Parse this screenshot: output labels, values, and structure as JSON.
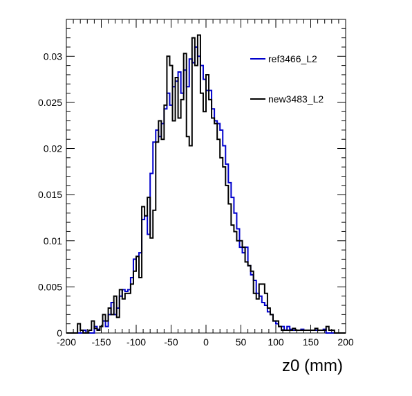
{
  "chart_data": {
    "type": "line",
    "style": "step-histogram",
    "title": "",
    "xlabel": "z0 (mm)",
    "ylabel": "",
    "xlim": [
      -200,
      200
    ],
    "ylim": [
      0,
      0.034
    ],
    "x_ticks": [
      -200,
      -150,
      -100,
      -50,
      0,
      50,
      100,
      150,
      200
    ],
    "x_tick_labels": [
      "-200",
      "-150",
      "-100",
      "-50",
      "0",
      "50",
      "100",
      "150",
      "200"
    ],
    "y_ticks": [
      0,
      0.005,
      0.01,
      0.015,
      0.02,
      0.025,
      0.03
    ],
    "y_tick_labels": [
      "0",
      "0.005",
      "0.01",
      "0.015",
      "0.02",
      "0.025",
      "0.03"
    ],
    "grid": false,
    "legend_position": "top-right",
    "bin_edges_start": -200,
    "bin_width": 4,
    "series": [
      {
        "name": "ref3466_L2",
        "color": "#0000cc",
        "values": [
          0,
          0,
          0,
          0,
          0,
          0,
          0.0003,
          0,
          0,
          0,
          0.0007,
          0.0004,
          0.0007,
          0.0013,
          0.0007,
          0.002,
          0.0033,
          0.002,
          0.0027,
          0.004,
          0.0047,
          0.0045,
          0.0047,
          0.006,
          0.008,
          0.0083,
          0.0087,
          0.0123,
          0.0127,
          0.0107,
          0.0173,
          0.0207,
          0.022,
          0.0213,
          0.0227,
          0.0243,
          0.026,
          0.0247,
          0.0267,
          0.0273,
          0.0283,
          0.026,
          0.0285,
          0.0267,
          0.0297,
          0.0293,
          0.031,
          0.03,
          0.029,
          0.0275,
          0.0263,
          0.0263,
          0.0243,
          0.023,
          0.0227,
          0.022,
          0.0203,
          0.0183,
          0.0163,
          0.0147,
          0.013,
          0.0113,
          0.0093,
          0.0087,
          0.0093,
          0.0073,
          0.0063,
          0.0057,
          0.0043,
          0.004,
          0.0033,
          0.003,
          0.0023,
          0.002,
          0.0013,
          0.001,
          0.0007,
          0.0007,
          0.0003,
          0.0007,
          0.0004,
          0.0003,
          0.0003,
          0.0003,
          0.0004,
          0.0003,
          0.0003,
          0.0003,
          0.0003,
          0.0003,
          0.0003,
          0.0003,
          0.0004,
          0,
          0,
          0,
          0,
          0,
          0,
          0
        ]
      },
      {
        "name": "new3483_L2",
        "color": "#000000",
        "values": [
          0,
          0,
          0,
          0,
          0.001,
          0.0003,
          0,
          0,
          0.0003,
          0.0013,
          0.0005,
          0.0003,
          0.0007,
          0.002,
          0.0013,
          0.0027,
          0.002,
          0.004,
          0.0017,
          0.0047,
          0.0037,
          0.0043,
          0.0043,
          0.0053,
          0.0067,
          0.0083,
          0.006,
          0.0137,
          0.0127,
          0.0147,
          0.0103,
          0.0133,
          0.0207,
          0.023,
          0.021,
          0.0247,
          0.03,
          0.029,
          0.023,
          0.0277,
          0.0233,
          0.0253,
          0.0303,
          0.0213,
          0.0203,
          0.032,
          0.029,
          0.0323,
          0.026,
          0.024,
          0.028,
          0.0253,
          0.0233,
          0.0227,
          0.021,
          0.019,
          0.018,
          0.016,
          0.014,
          0.0117,
          0.011,
          0.01,
          0.01,
          0.0093,
          0.0077,
          0.0073,
          0.0067,
          0.0043,
          0.0037,
          0.0053,
          0.0053,
          0.0043,
          0.0027,
          0.002,
          0.0013,
          0.0013,
          0.0007,
          0.0003,
          0.0003,
          0.0003,
          0.0003,
          0.0005,
          0.0003,
          0.0003,
          0.0003,
          0.0003,
          0.0003,
          0.0003,
          0.0003,
          0.0005,
          0.0003,
          0.0003,
          0.0003,
          0.0007,
          0.0003,
          0.0003,
          0,
          0,
          0,
          0
        ]
      }
    ]
  }
}
